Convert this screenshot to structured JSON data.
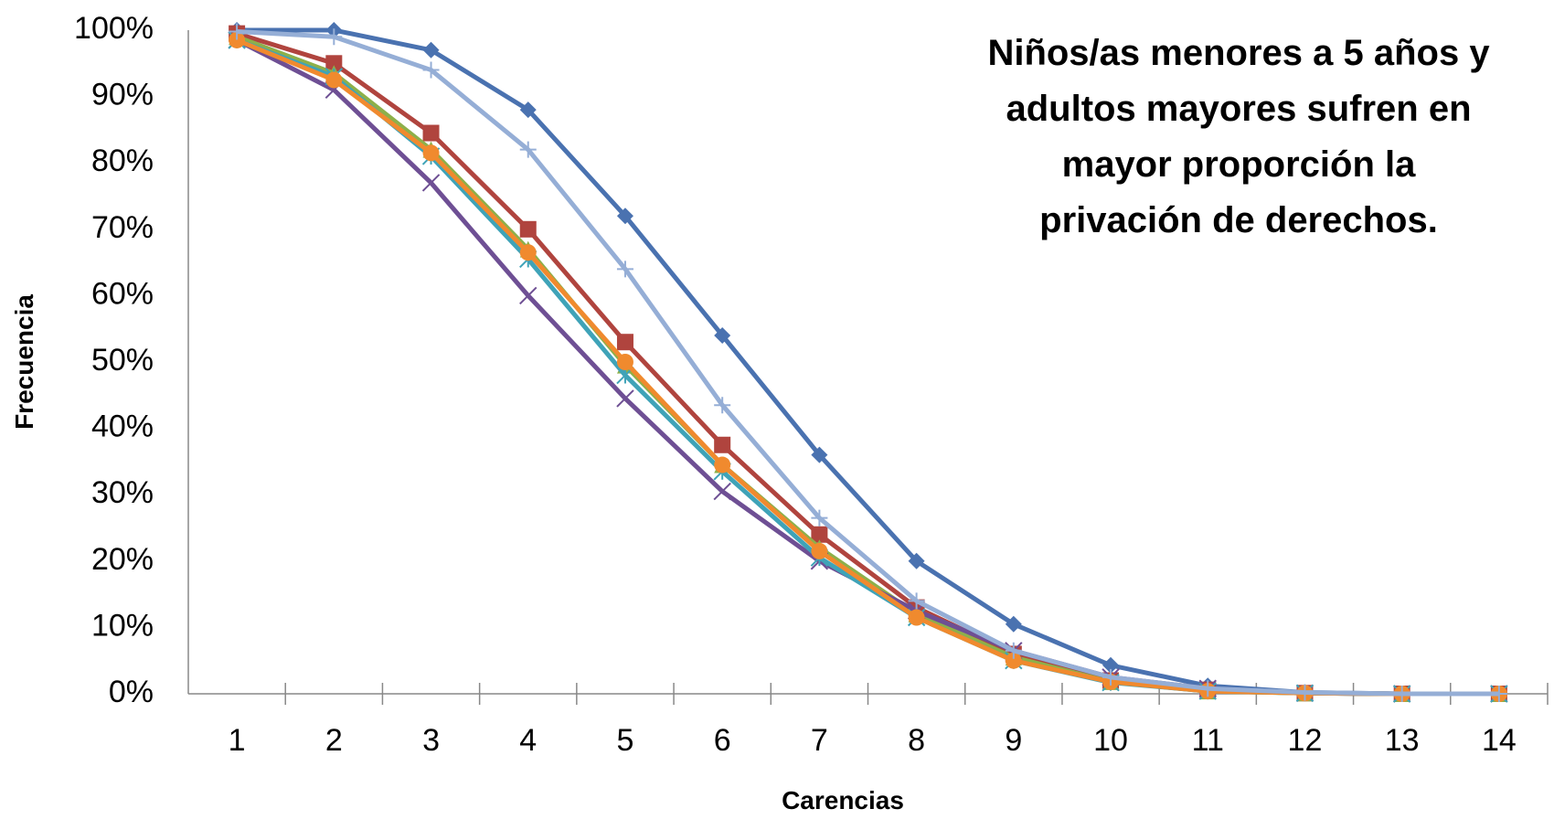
{
  "chart_data": {
    "type": "line",
    "xlabel": "Carencias",
    "ylabel": "Frecuencia",
    "annotation": "Niños/as menores a 5 años y adultos mayores sufren  en mayor proporción la privación de derechos.",
    "categories": [
      "1",
      "2",
      "3",
      "4",
      "5",
      "6",
      "7",
      "8",
      "9",
      "10",
      "11",
      "12",
      "13",
      "14"
    ],
    "ylim": [
      0,
      100
    ],
    "yticks": [
      {
        "value": 0,
        "label": "0%"
      },
      {
        "value": 10,
        "label": "10%"
      },
      {
        "value": 20,
        "label": "20%"
      },
      {
        "value": 30,
        "label": "30%"
      },
      {
        "value": 40,
        "label": "40%"
      },
      {
        "value": 50,
        "label": "50%"
      },
      {
        "value": 60,
        "label": "60%"
      },
      {
        "value": 70,
        "label": "70%"
      },
      {
        "value": 80,
        "label": "80%"
      },
      {
        "value": 90,
        "label": "90%"
      },
      {
        "value": 100,
        "label": "100%"
      }
    ],
    "grid": false,
    "series": [
      {
        "color": "#4a72b0",
        "marker": "diamond",
        "values": [
          100,
          100,
          97,
          88,
          72,
          54,
          36,
          20,
          10.5,
          4.3,
          1.2,
          0.2,
          0,
          0
        ]
      },
      {
        "color": "#b0443e",
        "marker": "square",
        "values": [
          99.5,
          95,
          84.5,
          70,
          53,
          37.5,
          24,
          13,
          6,
          2,
          0.6,
          0.1,
          0,
          0
        ]
      },
      {
        "color": "#8db04a",
        "marker": "triangle",
        "values": [
          99,
          93.5,
          82,
          67,
          49.5,
          34.5,
          22,
          12,
          5.5,
          1.8,
          0.4,
          0.1,
          0,
          0
        ]
      },
      {
        "color": "#6e4f94",
        "marker": "x",
        "values": [
          98.5,
          91,
          77,
          60,
          44.5,
          30.5,
          20,
          12.5,
          6.5,
          2.5,
          0.8,
          0.1,
          0,
          0
        ]
      },
      {
        "color": "#3fa3b8",
        "marker": "star",
        "values": [
          98.5,
          93,
          81,
          65.5,
          48,
          33.5,
          20.5,
          11.5,
          5,
          1.7,
          0.4,
          0.1,
          0,
          0
        ]
      },
      {
        "color": "#f08a2e",
        "marker": "circle",
        "values": [
          98.5,
          92.5,
          81.5,
          66.5,
          50,
          34.5,
          21.5,
          11.5,
          5,
          1.8,
          0.4,
          0.1,
          0,
          0
        ]
      },
      {
        "color": "#95aed6",
        "marker": "plus",
        "values": [
          99.8,
          99,
          94,
          82,
          64,
          43.5,
          26.5,
          14,
          6.5,
          2.5,
          0.8,
          0.2,
          0,
          0
        ]
      }
    ]
  }
}
